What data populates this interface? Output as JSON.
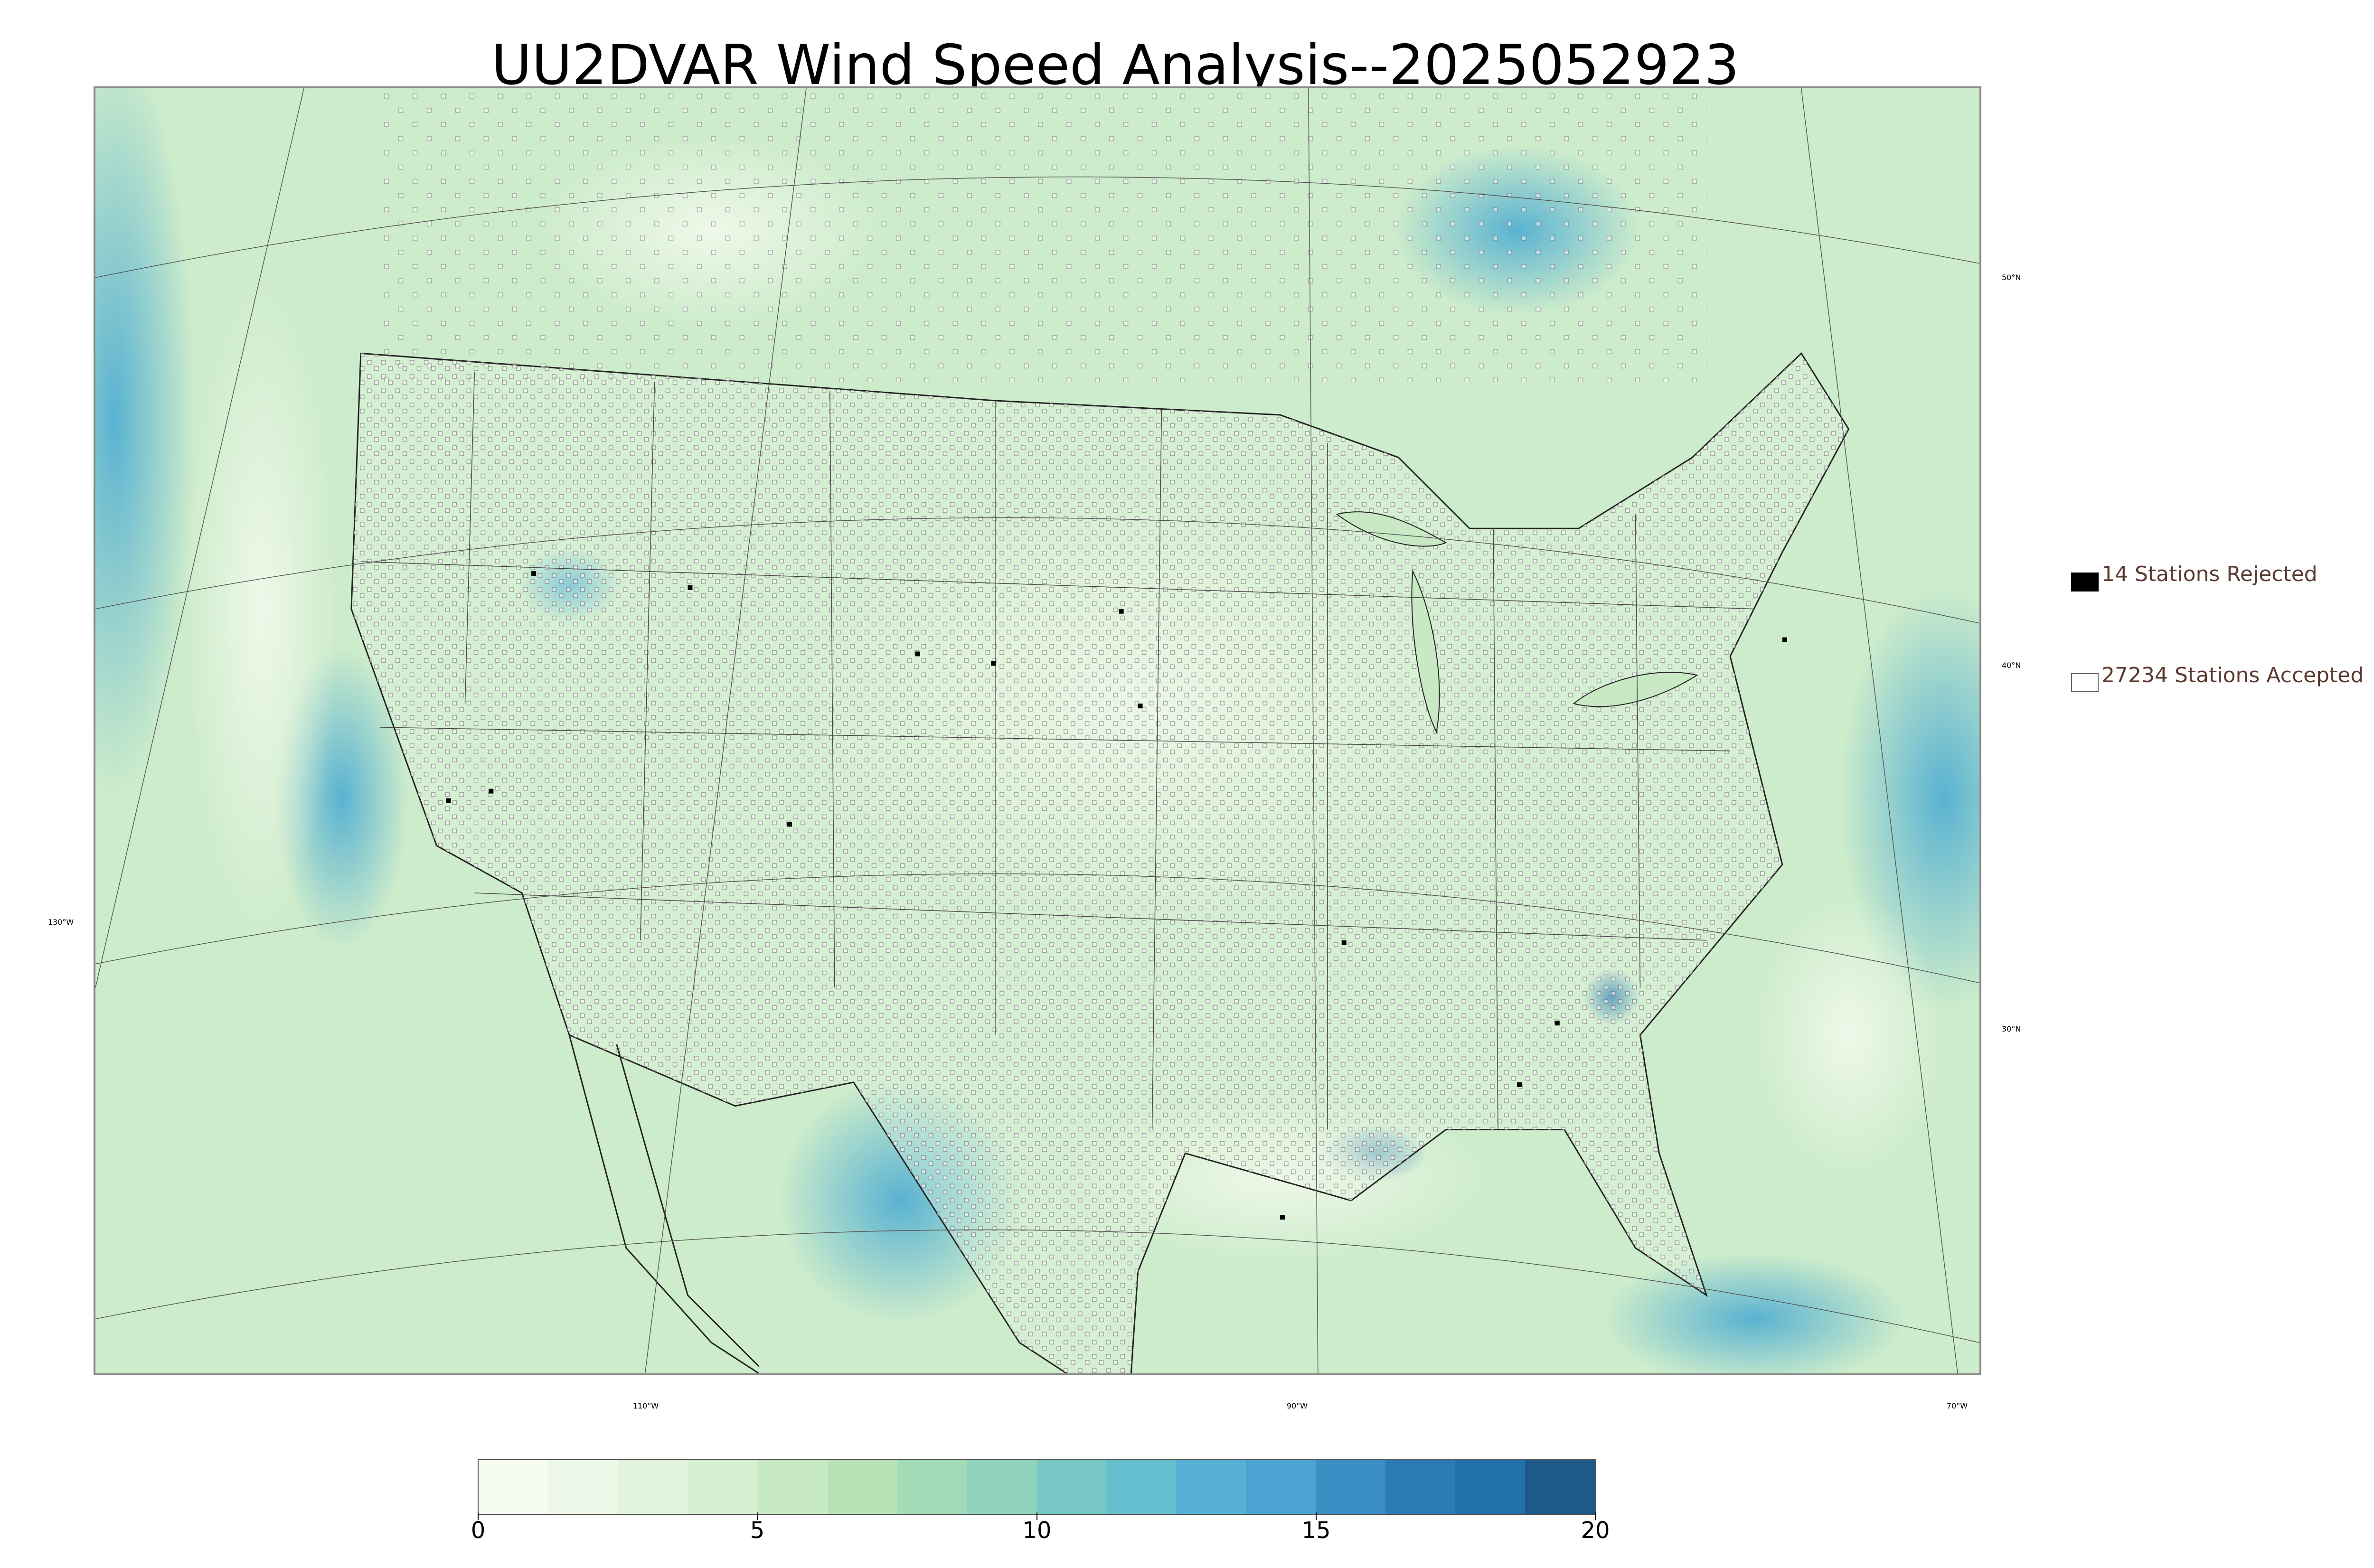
{
  "title": "UU2DVAR Wind Speed Analysis--2025052923",
  "map": {
    "lon_labels": [
      {
        "text": "130°W"
      },
      {
        "text": "110°W"
      },
      {
        "text": "90°W"
      },
      {
        "text": "70°W"
      }
    ],
    "lat_labels": [
      {
        "text": "50°N"
      },
      {
        "text": "40°N"
      },
      {
        "text": "30°N"
      }
    ],
    "field_colors": {
      "base": "#cdeccb",
      "light": "#f2faec",
      "mid": "#9fdcc0",
      "strong": "#45a8d3",
      "deep": "#1e6fab"
    }
  },
  "legend": {
    "rejected": {
      "label": "14 Stations Rejected",
      "marker": "filled-square",
      "color": "#000000"
    },
    "accepted": {
      "label": "27234 Stations Accepted",
      "marker": "hollow-square",
      "color": "#ffffff"
    }
  },
  "colorbar": {
    "min": 0,
    "max": 20,
    "ticks": [
      "0",
      "5",
      "10",
      "15",
      "20"
    ],
    "colors": [
      "#f7fcf0",
      "#eef8e8",
      "#e3f4de",
      "#d6efd0",
      "#c8eac2",
      "#b8e3b7",
      "#a4dbb7",
      "#8fd3bc",
      "#77c8c4",
      "#66bfcf",
      "#56b0d6",
      "#4aa3d3",
      "#3a8fc4",
      "#2c7bb6",
      "#2371ac",
      "#1d5a8a"
    ]
  }
}
